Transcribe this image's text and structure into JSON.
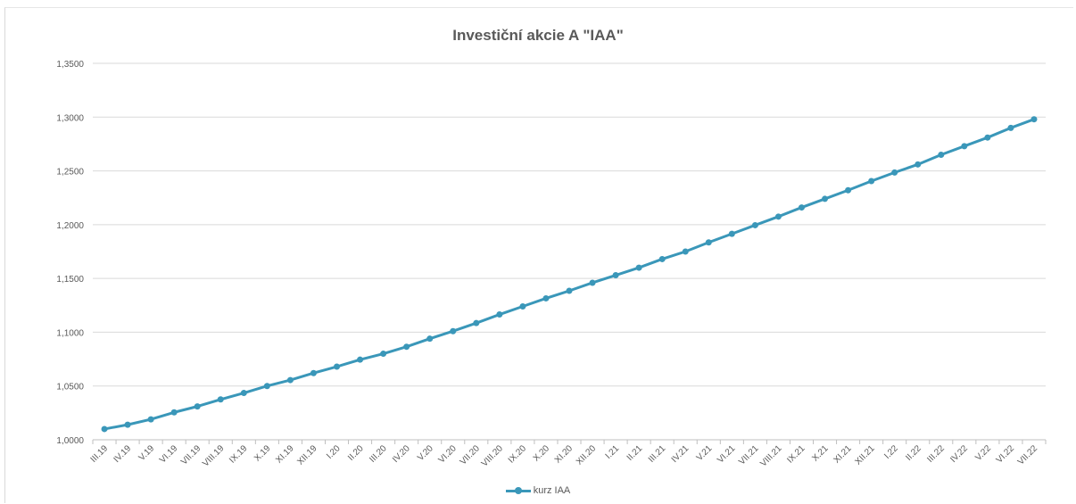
{
  "chart_data": {
    "type": "line",
    "title": "Investiční akcie A \"IAA\"",
    "xlabel": "",
    "ylabel": "",
    "ylim": [
      1.0,
      1.35
    ],
    "y_ticks": [
      "1,0000",
      "1,0500",
      "1,1000",
      "1,1500",
      "1,2000",
      "1,2500",
      "1,3000",
      "1,3500"
    ],
    "grid": true,
    "legend_position": "bottom",
    "line_color": "#3a97b9",
    "categories": [
      "III.19",
      "IV.19",
      "V.19",
      "VI.19",
      "VII.19",
      "VIII.19",
      "IX.19",
      "X.19",
      "XI.19",
      "XII.19",
      "I.20",
      "II.20",
      "III.20",
      "IV.20",
      "V.20",
      "VI.20",
      "VII.20",
      "VIII.20",
      "IX.20",
      "X.20",
      "XI.20",
      "XII.20",
      "I.21",
      "II.21",
      "III.21",
      "IV.21",
      "V.21",
      "VI.21",
      "VII.21",
      "VIII.21",
      "IX.21",
      "X.21",
      "XI.21",
      "XII.21",
      "I.22",
      "II.22",
      "III.22",
      "IV.22",
      "V.22",
      "VI.22",
      "VII.22"
    ],
    "series": [
      {
        "name": "kurz IAA",
        "values": [
          1.01,
          1.014,
          1.019,
          1.0255,
          1.031,
          1.0375,
          1.0435,
          1.05,
          1.0555,
          1.062,
          1.068,
          1.0745,
          1.08,
          1.0865,
          1.094,
          1.101,
          1.1085,
          1.1165,
          1.124,
          1.1315,
          1.1385,
          1.146,
          1.153,
          1.16,
          1.168,
          1.175,
          1.1835,
          1.1915,
          1.1995,
          1.2075,
          1.216,
          1.224,
          1.232,
          1.2405,
          1.2485,
          1.256,
          1.265,
          1.273,
          1.281,
          1.29,
          1.298
        ]
      }
    ]
  }
}
